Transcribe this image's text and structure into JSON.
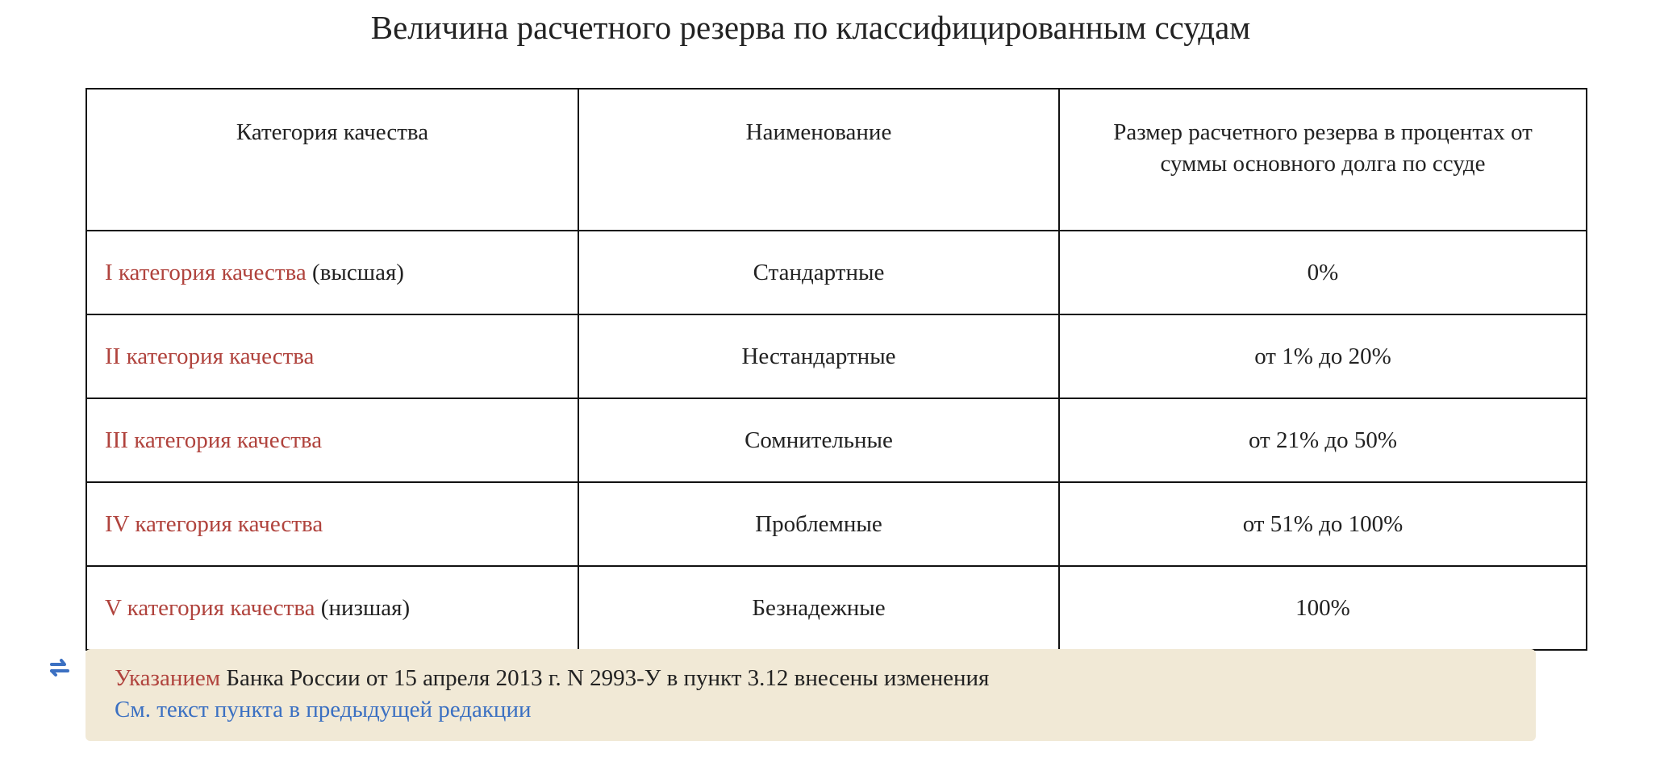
{
  "title": "Величина расчетного резерва по классифицированным ссудам",
  "table": {
    "headers": [
      "Категория качества",
      "Наименование",
      "Размер расчетного резерва в процентах от суммы основного долга по ссуде"
    ],
    "rows": [
      {
        "category_link": "I категория качества",
        "category_suffix": "(высшая)",
        "name": "Стандартные",
        "reserve": "0%"
      },
      {
        "category_link": "II категория качества",
        "name": "Нестандартные",
        "reserve": "от 1% до 20%"
      },
      {
        "category_link": "III категория качества",
        "name": "Сомнительные",
        "reserve": "от 21% до 50%"
      },
      {
        "category_link": "IV категория качества",
        "name": "Проблемные",
        "reserve": "от 51% до 100%"
      },
      {
        "category_link": "V категория качества",
        "category_suffix": "(низшая)",
        "name": "Безнадежные",
        "reserve": "100%"
      }
    ]
  },
  "note": {
    "link": "Указанием",
    "text": "Банка России от 15 апреля 2013 г. N 2993-У в пункт 3.12 внесены изменения",
    "prev_link": "См. текст пункта в предыдущей редакции"
  }
}
